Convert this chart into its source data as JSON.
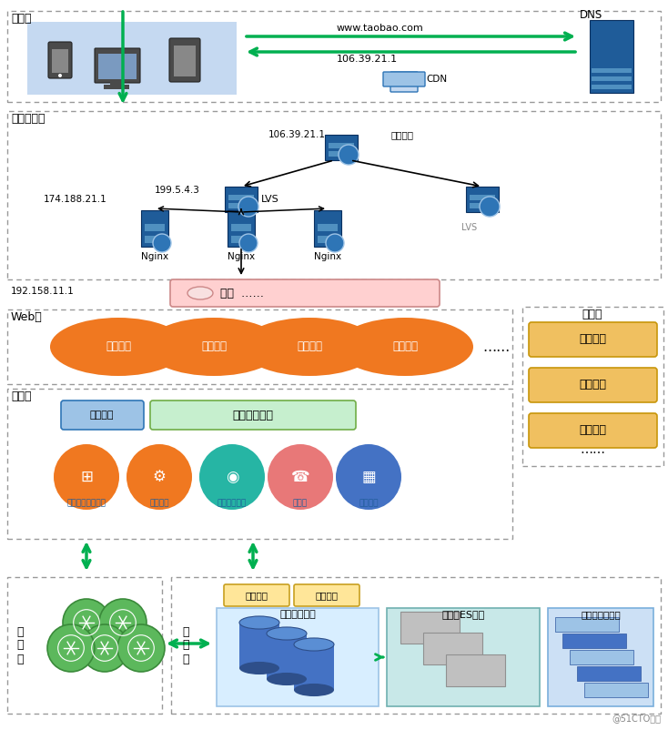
{
  "bg_color": "#ffffff",
  "colors": {
    "orange": "#F07820",
    "green_arrow": "#00b050",
    "light_blue_box": "#c5d9f1",
    "dashed_border": "#999999",
    "platform_orange_fill": "#f0c060",
    "platform_orange_edge": "#c8960a",
    "service_green": "#c6efce",
    "service_green_edge": "#70ad47",
    "msg_blue": "#9dc3e6",
    "msg_blue_edge": "#2e75b6",
    "cluster_pink": "#ffcccc",
    "cluster_pink_edge": "#cc8888",
    "db_blue": "#4472c4",
    "db_dark": "#2e4f8a",
    "es_gray": "#bfbfbf",
    "es_bg": "#c8e8e8",
    "file_bg": "#c8dff0",
    "file_blue": "#4472c4",
    "file_light": "#9dc3e6",
    "dns_blue": "#1f5c99",
    "server_blue": "#1f5c99",
    "globe_blue": "#2e75b6",
    "globe_light": "#9dc3e6",
    "db_bg": "#ddeeff",
    "layer_bg_gray": "#f0f0f0"
  },
  "web_services": [
    "商品服务",
    "订单服务",
    "支付服务",
    "物流服务"
  ],
  "platform_items": [
    "运维平台",
    "测试平台",
    "数据平台"
  ],
  "service_icons": [
    "服务网关配置中心",
    "服务中心",
    "服务链路追踪",
    "熍断器",
    "开发框架"
  ]
}
